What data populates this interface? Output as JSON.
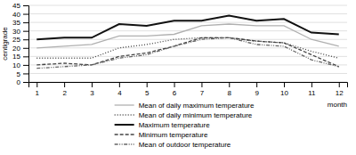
{
  "chart_data": {
    "type": "line",
    "x": [
      1,
      2,
      3,
      4,
      5,
      6,
      7,
      8,
      9,
      10,
      11,
      12
    ],
    "xlim": [
      0.7,
      12.3
    ],
    "xticks": [
      1,
      2,
      3,
      4,
      5,
      6,
      7,
      8,
      9,
      10,
      11,
      12
    ],
    "ylim": [
      0,
      45
    ],
    "yticks": [
      0,
      5,
      10,
      15,
      20,
      25,
      30,
      35,
      40,
      45
    ],
    "xlabel": "month",
    "ylabel": "centigrade",
    "grid": true,
    "legend": "bottom",
    "series": [
      {
        "name": "Mean of daily maximum temperature",
        "color": "#b0b0b0",
        "line_style": "solid",
        "values": [
          20,
          21,
          22,
          27,
          27,
          28,
          33,
          34,
          33,
          33,
          25,
          21
        ]
      },
      {
        "name": "Mean of daily minimum temperature",
        "color": "#444444",
        "line_style": "dotted",
        "values": [
          14,
          14,
          14,
          20,
          22,
          25,
          26,
          26,
          24,
          23,
          18,
          14
        ]
      },
      {
        "name": "Maximum temperature",
        "color": "#111111",
        "line_style": "solid",
        "values": [
          25,
          26,
          26,
          34,
          33,
          36,
          36,
          39,
          36,
          37,
          29,
          28
        ]
      },
      {
        "name": "Minimum temperature",
        "color": "#444444",
        "line_style": "dashed",
        "values": [
          10,
          11,
          10,
          15,
          17,
          21,
          26,
          26,
          24,
          23,
          16,
          9
        ]
      },
      {
        "name": "Mean of outdoor  temperature",
        "color": "#666666",
        "line_style": "dashdotdot",
        "values": [
          8,
          9,
          10,
          14,
          16,
          21,
          25,
          26,
          22,
          21,
          13,
          9
        ]
      }
    ]
  }
}
